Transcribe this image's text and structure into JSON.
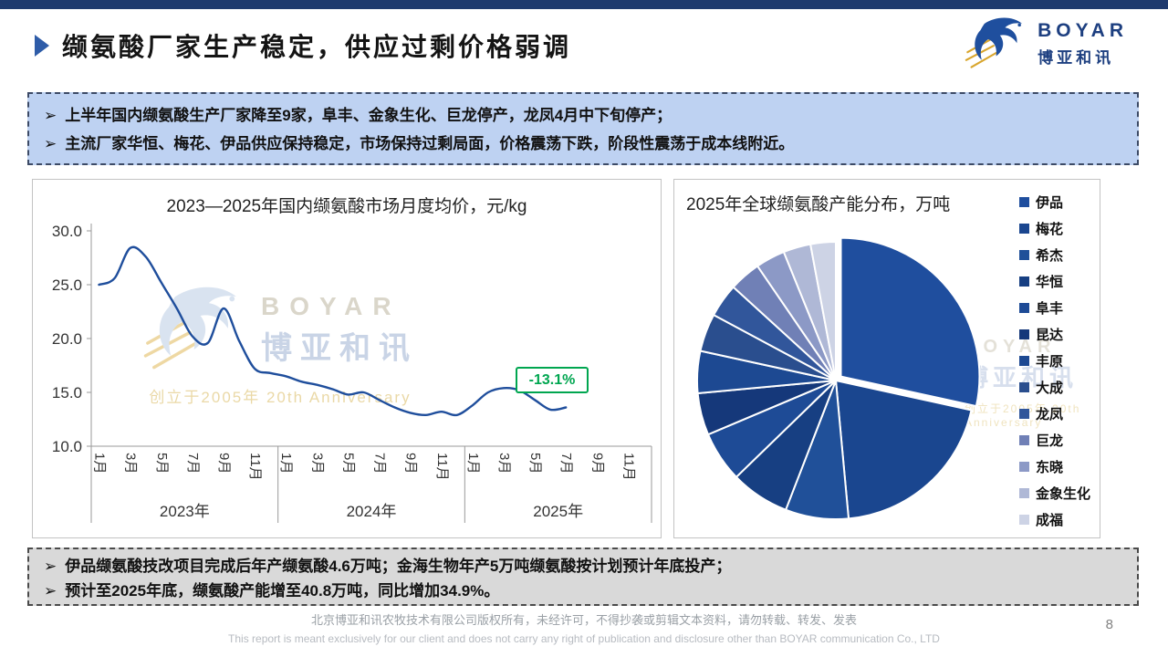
{
  "slide": {
    "title": "缬氨酸厂家生产稳定，供应过剩价格弱调",
    "page_number": "8",
    "bullet_marker": "➢",
    "accent_color": "#1E3A6E"
  },
  "logo": {
    "brand_en": "BOYAR",
    "brand_cn": "博亚和讯"
  },
  "highlight_box": {
    "bullets": [
      "上半年国内缬氨酸生产厂家降至9家，阜丰、金象生化、巨龙停产，龙凤4月中下旬停产；",
      "主流厂家华恒、梅花、伊品供应保持稳定，市场保持过剩局面，价格震荡下跌，阶段性震荡于成本线附近。"
    ]
  },
  "bottom_box": {
    "bullets": [
      "伊品缬氨酸技改项目完成后年产缬氨酸4.6万吨；金海生物年产5万吨缬氨酸按计划预计年底投产；",
      "预计至2025年底，缬氨酸产能增至40.8万吨，同比增加34.9%。"
    ]
  },
  "watermark": {
    "brand_en": "BOYAR",
    "brand_cn": "博亚和讯",
    "anniversary": "创立于2005年 20th Anniversary"
  },
  "footer": {
    "line1": "北京博亚和讯农牧技术有限公司版权所有，未经许可，不得抄袭或剪辑文本资料，请勿转载、转发、发表",
    "line2": "This report is meant exclusively for our client and does not carry any right of publication and disclosure other than BOYAR communication Co., LTD"
  },
  "chart_data": [
    {
      "type": "line",
      "title": "2023—2025年国内缬氨酸市场月度均价，元/kg",
      "ylabel": "元/kg",
      "ylim": [
        10,
        30
      ],
      "yticks": [
        30,
        25,
        20,
        15,
        10
      ],
      "month_tick_labels": [
        "1月",
        "3月",
        "5月",
        "7月",
        "9月",
        "11月"
      ],
      "grid": false,
      "line_color": "#1F4E9C",
      "annotation": {
        "text": "-13.1%",
        "color": "#00A650"
      },
      "series": [
        {
          "year": "2023年",
          "values": [
            25.0,
            25.6,
            28.4,
            27.6,
            25.2,
            22.8,
            20.2,
            19.6,
            22.8,
            19.8,
            17.2,
            16.8
          ]
        },
        {
          "year": "2024年",
          "values": [
            16.5,
            16.0,
            15.7,
            15.3,
            14.8,
            15.0,
            14.3,
            13.6,
            13.1,
            12.9,
            13.2,
            12.9
          ]
        },
        {
          "year": "2025年",
          "values": [
            13.8,
            15.0,
            15.4,
            15.2,
            14.3,
            13.4,
            13.6
          ]
        }
      ]
    },
    {
      "type": "pie",
      "title": "2025年全球缬氨酸产能分布，万吨",
      "unit": "万吨",
      "total": 40.8,
      "legend_position": "right",
      "slices": [
        {
          "label": "伊品",
          "value": 11.6,
          "color": "#1F4E9E"
        },
        {
          "label": "梅花",
          "value": 8.2,
          "color": "#1A468F"
        },
        {
          "label": "希杰",
          "value": 3.0,
          "color": "#205099"
        },
        {
          "label": "华恒",
          "value": 2.8,
          "color": "#173F82"
        },
        {
          "label": "阜丰",
          "value": 2.4,
          "color": "#1E4B96"
        },
        {
          "label": "昆达",
          "value": 2.0,
          "color": "#15387A"
        },
        {
          "label": "丰原",
          "value": 2.0,
          "color": "#1D4992"
        },
        {
          "label": "大成",
          "value": 1.8,
          "color": "#2A4E8E"
        },
        {
          "label": "龙凤",
          "value": 1.6,
          "color": "#31569B"
        },
        {
          "label": "巨龙",
          "value": 1.5,
          "color": "#7080B6"
        },
        {
          "label": "东晓",
          "value": 1.4,
          "color": "#8C99C6"
        },
        {
          "label": "金象生化",
          "value": 1.3,
          "color": "#AFB8D6"
        },
        {
          "label": "成福",
          "value": 1.2,
          "color": "#CDD3E5"
        }
      ]
    }
  ]
}
